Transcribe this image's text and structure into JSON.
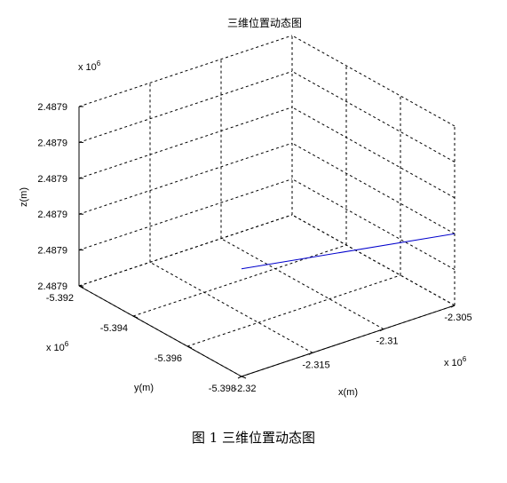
{
  "chart_data": {
    "type": "line",
    "title": "三维位置动态图",
    "xlabel": "x(m)",
    "ylabel": "y(m)",
    "zlabel": "z(m)",
    "x_ticks": [
      "-2.32",
      "-2.315",
      "-2.31",
      "-2.305"
    ],
    "y_ticks": [
      "-5.392",
      "-5.394",
      "-5.396",
      "-5.398"
    ],
    "z_ticks": [
      "2.4879",
      "2.4879",
      "2.4879",
      "2.4879",
      "2.4879",
      "2.4879"
    ],
    "x_exponent": "x 10",
    "x_exponent_power": "6",
    "y_exponent": "x 10",
    "y_exponent_power": "6",
    "z_exponent": "x 10",
    "z_exponent_power": "6",
    "xlim": [
      -2.32,
      -2.305
    ],
    "ylim": [
      -5.398,
      -5.392
    ],
    "zlim": [
      0,
      5
    ],
    "grid": true,
    "line_color": "#0000cc",
    "series": [
      {
        "x": [
          -2.32,
          -2.305
        ],
        "y": [
          -5.392,
          -5.392
        ],
        "z": [
          3.0,
          2.0
        ]
      }
    ]
  },
  "caption": "图 1  三维位置动态图"
}
